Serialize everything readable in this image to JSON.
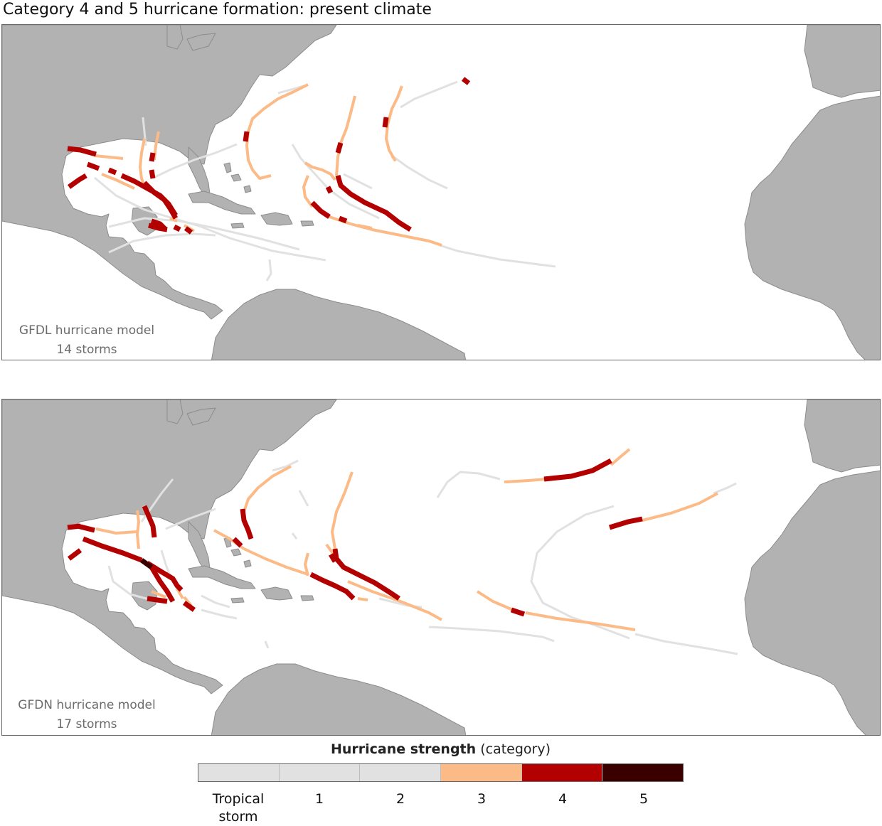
{
  "title": "Category 4 and 5 hurricane formation: present climate",
  "colors": {
    "land": "#b2b2b2",
    "coast": "#8c8c8c",
    "ocean": "#ffffff",
    "tropical_storm": "#e1e1e1",
    "cat1": "#e1e1e1",
    "cat2": "#e1e1e1",
    "cat3": "#fbba86",
    "cat4": "#b30000",
    "cat5": "#3a0000"
  },
  "panels": [
    {
      "model": "GFDL hurricane model",
      "storms": "14 storms",
      "storm_count": 14
    },
    {
      "model": "GFDN hurricane model",
      "storms": "17 storms",
      "storm_count": 17
    }
  ],
  "legend": {
    "title_bold": "Hurricane strength",
    "title_rest": " (category)",
    "categories": [
      {
        "label": "Tropical storm",
        "color": "#e1e1e1"
      },
      {
        "label": "1",
        "color": "#e1e1e1"
      },
      {
        "label": "2",
        "color": "#e1e1e1"
      },
      {
        "label": "3",
        "color": "#fbba86"
      },
      {
        "label": "4",
        "color": "#b30000"
      },
      {
        "label": "5",
        "color": "#3a0000"
      }
    ]
  }
}
